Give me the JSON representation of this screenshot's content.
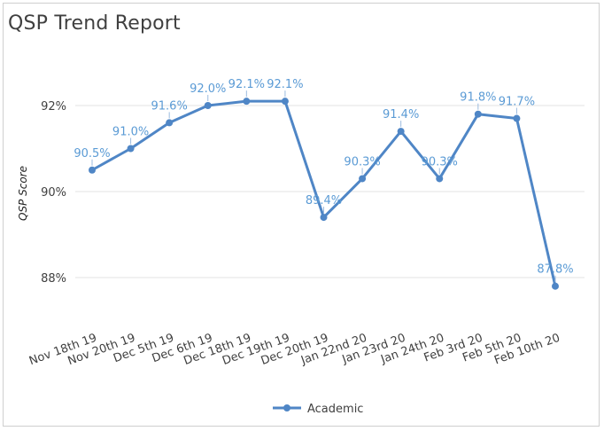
{
  "chart_data": {
    "type": "line",
    "title": "QSP Trend Report",
    "ylabel": "QSP Score",
    "xlabel": "",
    "categories": [
      "Nov 18th 19",
      "Nov 20th 19",
      "Dec 5th 19",
      "Dec 6th 19",
      "Dec 18th 19",
      "Dec 19th 19",
      "Dec 20th 19",
      "Jan 22nd 20",
      "Jan 23rd 20",
      "Jan 24th 20",
      "Feb 3rd 20",
      "Feb 5th 20",
      "Feb 10th 20"
    ],
    "series": [
      {
        "name": "Academic",
        "values": [
          90.5,
          91.0,
          91.6,
          92.0,
          92.1,
          92.1,
          89.4,
          90.3,
          91.4,
          90.3,
          91.8,
          91.7,
          87.8
        ],
        "labels": [
          "90.5%",
          "91.0%",
          "91.6%",
          "92.0%",
          "92.1%",
          "92.1%",
          "89.4%",
          "90.3%",
          "91.4%",
          "90.3%",
          "91.8%",
          "91.7%",
          "87.8%"
        ]
      }
    ],
    "yticks": [
      {
        "value": 88,
        "label": "88%"
      },
      {
        "value": 90,
        "label": "90%"
      },
      {
        "value": 92,
        "label": "92%"
      }
    ],
    "ylim": [
      87.6,
      93.7
    ],
    "grid": true,
    "legend_position": "bottom",
    "colors": {
      "line": "#4f86c6",
      "label": "#5b9bd5",
      "grid": "#e3e3e3"
    }
  }
}
